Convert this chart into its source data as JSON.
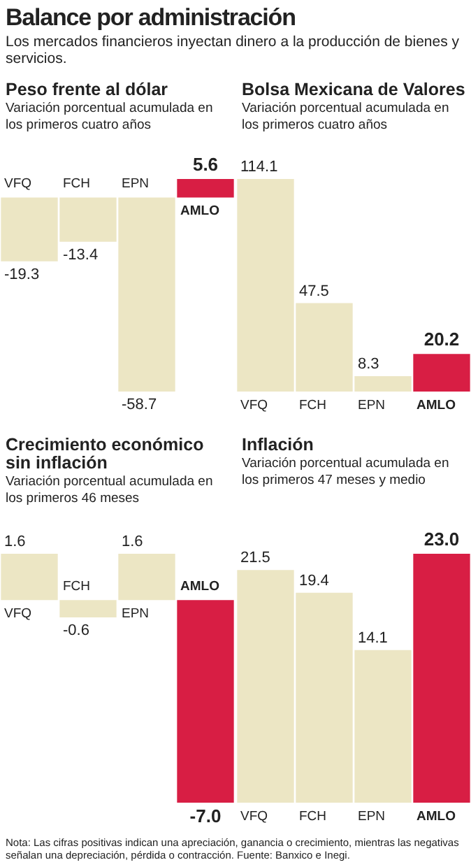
{
  "chart_data": [
    {
      "type": "other",
      "title": "Balance por administración",
      "subtitle": "Los mercados financieros inyectan dinero a la producción de bienes y servicios.",
      "annotations": [
        "Nota: Las cifras positivas indican una apreciación, ganancia o crecimiento, mientras las negativas señalan una depreciación, pérdida o contracción. Fuente: Banxico e Inegi."
      ]
    },
    {
      "type": "bar",
      "title": "Peso frente al dólar",
      "subtitle": "Variación porcentual acumulada en los primeros cuatro años",
      "categories": [
        "VFQ",
        "FCH",
        "EPN",
        "AMLO"
      ],
      "values": [
        -19.3,
        -13.4,
        -58.7,
        5.6
      ],
      "value_labels": [
        "-19.3",
        "-13.4",
        "-58.7",
        "5.6"
      ],
      "colors": [
        "#ece6c4",
        "#ece6c4",
        "#ece6c4",
        "#d81e44"
      ]
    },
    {
      "type": "bar",
      "title": "Bolsa Mexicana de Valores",
      "subtitle": "Variación porcentual acumulada en los primeros cuatro años",
      "categories": [
        "VFQ",
        "FCH",
        "EPN",
        "AMLO"
      ],
      "values": [
        114.1,
        47.5,
        8.3,
        20.2
      ],
      "value_labels": [
        "114.1",
        "47.5",
        "8.3",
        "20.2"
      ],
      "colors": [
        "#ece6c4",
        "#ece6c4",
        "#ece6c4",
        "#d81e44"
      ]
    },
    {
      "type": "bar",
      "title": "Crecimiento económico sin inflación",
      "subtitle": "Variación porcentual acumulada en los primeros 46 meses",
      "categories": [
        "VFQ",
        "FCH",
        "EPN",
        "AMLO"
      ],
      "values": [
        1.6,
        -0.6,
        1.6,
        -7.0
      ],
      "value_labels": [
        "1.6",
        "-0.6",
        "1.6",
        "-7.0"
      ],
      "colors": [
        "#ece6c4",
        "#ece6c4",
        "#ece6c4",
        "#d81e44"
      ]
    },
    {
      "type": "bar",
      "title": "Inflación",
      "subtitle": "Variación porcentual acumulada en los primeros 47 meses y medio",
      "categories": [
        "VFQ",
        "FCH",
        "EPN",
        "AMLO"
      ],
      "values": [
        21.5,
        19.4,
        14.1,
        23.0
      ],
      "value_labels": [
        "21.5",
        "19.4",
        "14.1",
        "23.0"
      ],
      "colors": [
        "#ece6c4",
        "#ece6c4",
        "#ece6c4",
        "#d81e44"
      ]
    }
  ]
}
